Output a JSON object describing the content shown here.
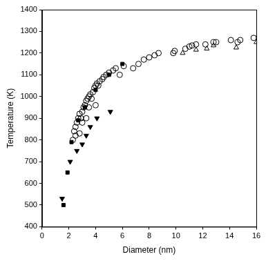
{
  "chart_data": {
    "type": "scatter",
    "x_label": "Diameter (nm)",
    "y_label": "Temperature (K)",
    "xlim": [
      0,
      16
    ],
    "xticks": [
      0,
      2,
      4,
      6,
      8,
      10,
      12,
      14,
      16
    ],
    "ylim": [
      400,
      1400
    ],
    "yticks": [
      400,
      500,
      600,
      700,
      800,
      900,
      1000,
      1100,
      1200,
      1300,
      1400
    ],
    "grid": false,
    "series": [
      {
        "color": "#000000",
        "marker": "circle-open",
        "x": [
          2.3,
          2.4,
          2.5,
          2.5,
          2.6,
          2.7,
          2.8,
          2.8,
          2.9,
          3.0,
          3.0,
          3.1,
          3.2,
          3.3,
          3.3,
          3.4,
          3.5,
          3.5,
          3.6,
          3.7,
          3.8,
          3.9,
          4.0,
          4.0,
          4.1,
          4.2,
          4.3,
          4.5,
          4.6,
          4.8,
          5.0,
          5.3,
          5.5,
          5.8,
          6.1,
          6.8,
          7.2,
          7.6,
          8.0,
          8.4,
          8.7,
          9.8,
          9.9,
          10.7,
          11.0,
          11.2,
          11.5,
          12.2,
          12.8,
          13.0,
          14.1,
          14.6,
          14.8,
          15.8
        ],
        "values": [
          800,
          840,
          820,
          860,
          880,
          900,
          830,
          920,
          900,
          880,
          930,
          950,
          960,
          900,
          980,
          990,
          1000,
          950,
          1010,
          990,
          1020,
          1040,
          960,
          1050,
          1060,
          1050,
          1070,
          1080,
          1090,
          1100,
          1110,
          1120,
          1130,
          1100,
          1140,
          1130,
          1150,
          1170,
          1180,
          1190,
          1200,
          1200,
          1210,
          1220,
          1230,
          1235,
          1240,
          1240,
          1250,
          1250,
          1260,
          1250,
          1260,
          1270
        ]
      },
      {
        "color": "#000000",
        "marker": "square",
        "x": [
          1.6,
          1.9,
          2.2,
          2.7,
          3.2,
          4.0,
          5.0,
          6.0
        ],
        "values": [
          500,
          650,
          790,
          890,
          950,
          1030,
          1100,
          1150
        ]
      },
      {
        "color": "#000000",
        "marker": "triangle-down",
        "x": [
          1.5,
          2.1,
          2.6,
          3.0,
          3.3,
          3.6,
          4.1,
          5.1
        ],
        "values": [
          530,
          700,
          750,
          780,
          820,
          860,
          900,
          930
        ]
      },
      {
        "color": "#000000",
        "marker": "triangle-up-open",
        "x": [
          10.5,
          11.5,
          12.3,
          12.8,
          14.5,
          16.0
        ],
        "values": [
          1200,
          1215,
          1220,
          1235,
          1225,
          1250
        ]
      }
    ]
  }
}
